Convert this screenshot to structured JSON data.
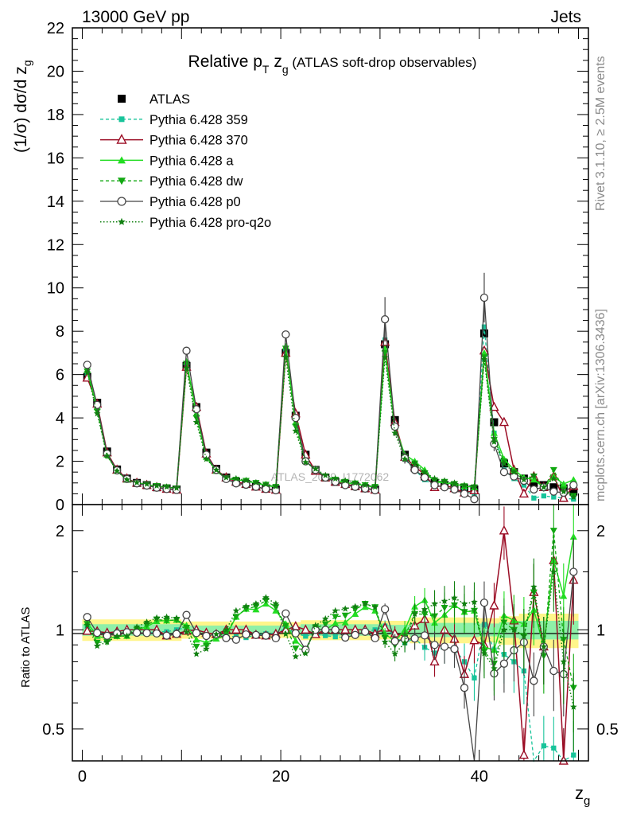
{
  "header": {
    "left": "13000 GeV pp",
    "right": "Jets"
  },
  "side_labels": {
    "rivet": "Rivet 3.1.10, ≥ 2.5M events",
    "mcplots": "mcplots.cern.ch [arXiv:1306.3436]"
  },
  "watermark": "ATLAS_2019_I1772062",
  "colors": {
    "ATLAS": "#000000",
    "359": "#18c49a",
    "370": "#9b0c24",
    "a": "#22dd22",
    "dw": "#12a812",
    "p0": "#444444",
    "pro-q2o": "#118011",
    "band_outer": "#fff58a",
    "band_inner": "#8ff0a8"
  },
  "chart_data": [
    {
      "type": "line",
      "title": {
        "main": "Relative p",
        "sub": "T",
        "mid": " z",
        "sub2": "g",
        "tail": " (ATLAS soft-drop observables)"
      },
      "ylabel": {
        "main": "(1/σ) dσ/d z",
        "sub": "g"
      },
      "xlim": [
        -1,
        51
      ],
      "ylim": [
        0,
        22
      ],
      "yticks": [
        0,
        2,
        4,
        6,
        8,
        10,
        12,
        14,
        16,
        18,
        20,
        22
      ],
      "x": [
        0.5,
        1.5,
        2.5,
        3.5,
        4.5,
        5.5,
        6.5,
        7.5,
        8.5,
        9.5,
        10.5,
        11.5,
        12.5,
        13.5,
        14.5,
        15.5,
        16.5,
        17.5,
        18.5,
        19.5,
        20.5,
        21.5,
        22.5,
        23.5,
        24.5,
        25.5,
        26.5,
        27.5,
        28.5,
        29.5,
        30.5,
        31.5,
        32.5,
        33.5,
        34.5,
        35.5,
        36.5,
        37.5,
        38.5,
        39.5,
        40.5,
        41.5,
        42.5,
        43.5,
        44.5,
        45.5,
        46.5,
        47.5,
        48.5,
        49.5
      ],
      "series": [
        {
          "name": "ATLAS",
          "key": "ATLAS",
          "values": [
            5.9,
            4.7,
            2.45,
            1.62,
            1.2,
            1.0,
            0.9,
            0.8,
            0.75,
            0.7,
            6.4,
            4.5,
            2.4,
            1.65,
            1.25,
            1.05,
            0.95,
            0.85,
            0.75,
            0.7,
            7.0,
            4.1,
            2.3,
            1.6,
            1.25,
            1.05,
            0.95,
            0.85,
            0.75,
            0.7,
            7.4,
            3.9,
            2.3,
            1.7,
            1.3,
            1.0,
            0.9,
            0.8,
            0.75,
            0.7,
            7.9,
            3.8,
            1.9,
            1.5,
            1.2,
            1.0,
            0.9,
            0.8,
            0.75,
            0.6
          ]
        },
        {
          "name": "Pythia 6.428 359",
          "key": "359",
          "values": [
            6.05,
            4.6,
            2.35,
            1.58,
            1.18,
            0.98,
            0.88,
            0.79,
            0.74,
            0.7,
            6.5,
            4.4,
            2.3,
            1.6,
            1.2,
            1.0,
            0.9,
            0.82,
            0.73,
            0.68,
            7.1,
            4.0,
            2.2,
            1.55,
            1.2,
            1.0,
            0.9,
            0.82,
            0.74,
            0.7,
            7.6,
            3.7,
            2.1,
            1.6,
            1.15,
            0.85,
            0.8,
            0.7,
            0.6,
            0.5,
            8.2,
            3.3,
            1.6,
            1.2,
            0.9,
            0.3,
            0.4,
            0.35,
            0.3,
            0.25
          ]
        },
        {
          "name": "Pythia 6.428 370",
          "key": "370",
          "values": [
            5.85,
            4.65,
            2.4,
            1.6,
            1.2,
            1.0,
            0.9,
            0.8,
            0.72,
            0.68,
            6.35,
            4.5,
            2.35,
            1.6,
            1.25,
            1.05,
            0.95,
            0.82,
            0.72,
            0.68,
            7.0,
            4.2,
            2.3,
            1.55,
            1.25,
            1.05,
            0.95,
            0.85,
            0.75,
            0.68,
            7.5,
            3.8,
            2.2,
            1.75,
            1.4,
            0.8,
            0.9,
            0.75,
            0.55,
            0.65,
            7.1,
            4.5,
            3.8,
            1.6,
            0.5,
            1.3,
            0.8,
            1.3,
            0.3,
            0.85
          ]
        },
        {
          "name": "Pythia 6.428 a",
          "key": "a",
          "values": [
            6.2,
            4.5,
            2.3,
            1.55,
            1.15,
            1.0,
            0.92,
            0.85,
            0.8,
            0.75,
            6.6,
            4.2,
            2.2,
            1.55,
            1.2,
            1.15,
            1.1,
            0.98,
            0.9,
            0.8,
            7.3,
            3.8,
            2.0,
            1.6,
            1.25,
            1.1,
            1.0,
            0.95,
            0.88,
            0.8,
            7.2,
            3.6,
            2.3,
            2.0,
            1.6,
            1.05,
            1.0,
            0.95,
            0.85,
            0.8,
            7.0,
            3.3,
            2.1,
            1.6,
            1.25,
            1.15,
            0.8,
            1.3,
            0.95,
            1.15
          ]
        },
        {
          "name": "Pythia 6.428 dw",
          "key": "dw",
          "values": [
            6.15,
            4.3,
            2.25,
            1.55,
            1.15,
            1.0,
            0.93,
            0.86,
            0.8,
            0.75,
            6.5,
            4.0,
            2.15,
            1.58,
            1.22,
            1.15,
            1.1,
            1.0,
            0.92,
            0.82,
            7.2,
            3.6,
            2.0,
            1.62,
            1.3,
            1.15,
            1.05,
            0.98,
            0.9,
            0.82,
            7.0,
            3.5,
            2.2,
            1.9,
            1.45,
            1.1,
            1.05,
            0.95,
            0.85,
            0.8,
            6.8,
            3.0,
            2.0,
            1.5,
            1.15,
            1.3,
            0.75,
            1.6,
            0.7,
            0.4
          ]
        },
        {
          "name": "Pythia 6.428 p0",
          "key": "p0",
          "values": [
            6.45,
            4.6,
            2.35,
            1.58,
            1.18,
            0.98,
            0.88,
            0.78,
            0.72,
            0.68,
            7.1,
            4.4,
            2.3,
            1.6,
            1.18,
            0.98,
            0.92,
            0.82,
            0.72,
            0.66,
            7.85,
            4.0,
            2.0,
            1.6,
            1.25,
            1.05,
            0.9,
            0.82,
            0.74,
            0.66,
            8.55,
            3.6,
            2.15,
            1.6,
            1.25,
            0.9,
            0.8,
            0.7,
            0.5,
            0.25,
            9.55,
            2.8,
            1.5,
            1.3,
            1.1,
            0.7,
            0.8,
            0.6,
            0.55,
            0.9
          ]
        },
        {
          "name": "Pythia 6.428 pro-q2o",
          "key": "pro-q2o",
          "values": [
            6.1,
            4.2,
            2.25,
            1.55,
            1.15,
            1.02,
            0.95,
            0.87,
            0.82,
            0.76,
            6.3,
            3.8,
            2.1,
            1.6,
            1.25,
            1.2,
            1.12,
            1.02,
            0.94,
            0.84,
            6.8,
            3.4,
            1.95,
            1.65,
            1.35,
            1.2,
            1.1,
            1.0,
            0.9,
            0.82,
            6.8,
            3.3,
            2.1,
            1.9,
            1.5,
            1.2,
            1.1,
            1.0,
            0.9,
            0.85,
            6.7,
            2.9,
            1.9,
            1.5,
            1.15,
            1.35,
            0.8,
            1.2,
            0.6,
            0.35
          ]
        }
      ]
    },
    {
      "type": "line",
      "ylabel": "Ratio to ATLAS",
      "xlabel": {
        "main": "z",
        "sub": "g"
      },
      "xlim": [
        -1,
        51
      ],
      "ylim": [
        0.4,
        2.4
      ],
      "log_y": true,
      "yticks": [
        0.5,
        1,
        2
      ],
      "xticks": [
        0,
        20,
        40
      ],
      "band": {
        "outer": [
          0.075,
          0.075,
          0.075,
          0.075,
          0.075,
          0.075,
          0.075,
          0.075,
          0.075,
          0.075,
          0.06,
          0.06,
          0.06,
          0.06,
          0.06,
          0.06,
          0.06,
          0.06,
          0.06,
          0.06,
          0.055,
          0.055,
          0.07,
          0.07,
          0.07,
          0.07,
          0.07,
          0.07,
          0.07,
          0.07,
          0.065,
          0.065,
          0.065,
          0.09,
          0.09,
          0.09,
          0.09,
          0.09,
          0.09,
          0.09,
          0.085,
          0.085,
          0.1,
          0.1,
          0.12,
          0.12,
          0.12,
          0.12,
          0.12,
          0.12
        ],
        "inner": [
          0.04,
          0.04,
          0.04,
          0.04,
          0.04,
          0.04,
          0.04,
          0.04,
          0.04,
          0.04,
          0.03,
          0.03,
          0.03,
          0.03,
          0.03,
          0.03,
          0.03,
          0.03,
          0.03,
          0.03,
          0.028,
          0.028,
          0.04,
          0.04,
          0.04,
          0.04,
          0.04,
          0.04,
          0.04,
          0.04,
          0.035,
          0.035,
          0.035,
          0.05,
          0.05,
          0.05,
          0.05,
          0.05,
          0.05,
          0.05,
          0.045,
          0.045,
          0.055,
          0.055,
          0.065,
          0.065,
          0.065,
          0.065,
          0.065,
          0.065
        ]
      }
    }
  ]
}
